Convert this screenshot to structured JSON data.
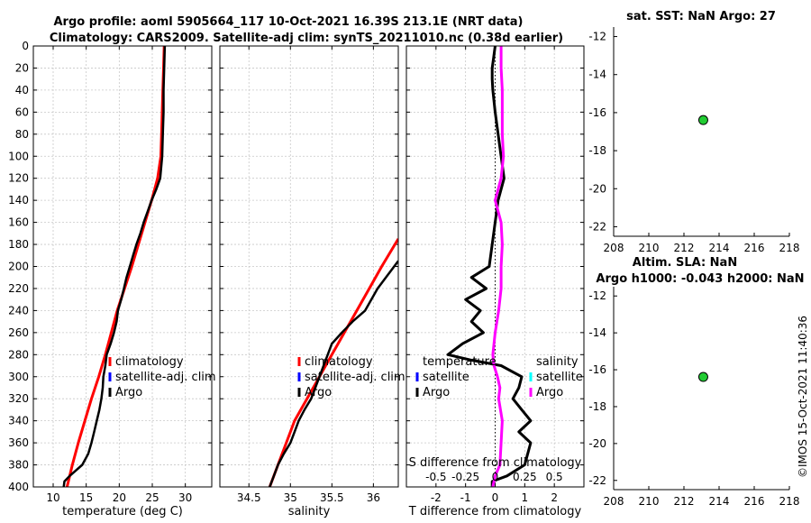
{
  "title": {
    "line1": "Argo profile: aoml 5905664_117 10-Oct-2021 16.39S 213.1E (NRT data)",
    "line2": "Climatology: CARS2009. Satellite-adj clim: synTS_20211010.nc (0.38d earlier)"
  },
  "stamp": "©IMOS 15-Oct-2021 11:40:36",
  "colors": {
    "red": "#ff0000",
    "blue": "#0000ff",
    "black": "#000000",
    "magenta": "#ff00ff",
    "cyan": "#00ffff",
    "green": "#22cc33",
    "grid": "#c8c8c8"
  },
  "chart_data": [
    {
      "id": "temperature",
      "type": "line",
      "xlabel": "temperature (deg C)",
      "ylabel": "",
      "xlim": [
        7,
        34
      ],
      "ylim": [
        400,
        0
      ],
      "xticks": [
        10,
        15,
        20,
        25,
        30
      ],
      "yticks": [
        0,
        20,
        40,
        60,
        80,
        100,
        120,
        140,
        160,
        180,
        200,
        220,
        240,
        260,
        280,
        300,
        320,
        340,
        360,
        380,
        400
      ],
      "legend": [
        "climatology",
        "satellite-adj. clim",
        "Argo"
      ],
      "series": [
        {
          "name": "climatology",
          "color": "red",
          "depth": [
            0,
            20,
            40,
            60,
            80,
            100,
            120,
            140,
            160,
            180,
            200,
            220,
            240,
            260,
            280,
            300,
            320,
            340,
            360,
            380,
            400
          ],
          "values": [
            26.8,
            26.7,
            26.6,
            26.5,
            26.4,
            26.3,
            25.8,
            24.9,
            23.9,
            22.9,
            21.9,
            20.8,
            19.7,
            18.8,
            17.9,
            16.9,
            15.8,
            14.8,
            13.8,
            12.9,
            12.1
          ]
        },
        {
          "name": "Argo",
          "color": "black",
          "depth": [
            0,
            20,
            40,
            60,
            80,
            100,
            120,
            130,
            140,
            150,
            160,
            170,
            180,
            190,
            200,
            210,
            220,
            230,
            240,
            250,
            260,
            270,
            280,
            290,
            300,
            310,
            320,
            330,
            340,
            350,
            360,
            370,
            380,
            390,
            395,
            400
          ],
          "values": [
            26.9,
            26.8,
            26.7,
            26.7,
            26.6,
            26.5,
            26.2,
            25.6,
            24.9,
            24.3,
            23.7,
            23.2,
            22.6,
            22.1,
            21.6,
            21.1,
            20.7,
            20.3,
            19.8,
            19.6,
            19.2,
            18.7,
            18.1,
            17.9,
            17.6,
            17.5,
            17.3,
            17.0,
            16.6,
            16.2,
            15.8,
            15.3,
            14.4,
            12.5,
            11.7,
            11.6
          ]
        }
      ]
    },
    {
      "id": "salinity",
      "type": "line",
      "xlabel": "salinity",
      "xlim": [
        34.15,
        36.3
      ],
      "ylim": [
        400,
        0
      ],
      "xticks": [
        34.5,
        35,
        35.5,
        36
      ],
      "legend": [
        "climatology",
        "satellite-adj. clim",
        "Argo"
      ],
      "series": [
        {
          "name": "climatology",
          "color": "red",
          "depth": [
            175,
            200,
            220,
            240,
            260,
            280,
            300,
            320,
            340,
            360,
            380,
            400
          ],
          "values": [
            36.3,
            36.1,
            35.95,
            35.8,
            35.65,
            35.5,
            35.35,
            35.2,
            35.05,
            34.95,
            34.85,
            34.75
          ]
        },
        {
          "name": "Argo",
          "color": "black",
          "depth": [
            195,
            210,
            220,
            240,
            250,
            260,
            270,
            280,
            290,
            300,
            310,
            320,
            330,
            340,
            350,
            360,
            370,
            380,
            390,
            400
          ],
          "values": [
            36.3,
            36.15,
            36.05,
            35.9,
            35.75,
            35.62,
            35.5,
            35.45,
            35.4,
            35.35,
            35.3,
            35.25,
            35.17,
            35.1,
            35.05,
            35.0,
            34.92,
            34.85,
            34.8,
            34.75
          ]
        }
      ]
    },
    {
      "id": "differences",
      "type": "line",
      "xlabel": "T difference from climatology",
      "xlabel_top": "S difference from climatology",
      "xlim": [
        -3,
        3
      ],
      "ylim": [
        400,
        0
      ],
      "xticks": [
        -2,
        -1,
        0,
        1,
        2
      ],
      "xticks_top": [
        "-0.5",
        "-0.25",
        "0",
        "0.25",
        "0.5"
      ],
      "legend_t": [
        "temperature",
        "satellite",
        "Argo"
      ],
      "legend_s": [
        "salinity",
        "satellite",
        "Argo"
      ],
      "series": [
        {
          "name": "T difference (Argo)",
          "color": "black",
          "depth": [
            0,
            10,
            20,
            30,
            40,
            60,
            80,
            100,
            120,
            140,
            160,
            180,
            200,
            210,
            220,
            230,
            240,
            250,
            260,
            270,
            280,
            285,
            290,
            300,
            310,
            320,
            330,
            340,
            350,
            360,
            370,
            380,
            390,
            395,
            400
          ],
          "values": [
            0.0,
            -0.05,
            -0.1,
            -0.1,
            -0.08,
            0.0,
            0.1,
            0.2,
            0.3,
            0.1,
            0.0,
            -0.1,
            -0.2,
            -0.8,
            -0.3,
            -1.0,
            -0.5,
            -0.8,
            -0.4,
            -1.1,
            -1.6,
            -0.8,
            0.2,
            0.9,
            0.8,
            0.6,
            0.9,
            1.2,
            0.8,
            1.2,
            1.1,
            1.0,
            0.4,
            -0.1,
            -0.1
          ]
        },
        {
          "name": "S difference (Argo)",
          "color": "magenta",
          "depth": [
            0,
            20,
            40,
            60,
            80,
            100,
            120,
            140,
            160,
            180,
            200,
            220,
            240,
            260,
            270,
            280,
            290,
            300,
            310,
            320,
            340,
            360,
            380,
            390,
            400
          ],
          "values": [
            0.05,
            0.05,
            0.06,
            0.06,
            0.06,
            0.07,
            0.05,
            0.0,
            0.05,
            0.06,
            0.05,
            0.05,
            0.03,
            0.0,
            -0.01,
            -0.02,
            -0.01,
            0.02,
            0.04,
            0.03,
            0.06,
            0.05,
            0.04,
            0.0,
            -0.02
          ]
        }
      ]
    },
    {
      "id": "sst_map",
      "type": "scatter",
      "title": "sat. SST: NaN Argo: 27",
      "xlim": [
        208,
        218
      ],
      "ylim": [
        -22.5,
        -11.5
      ],
      "xticks": [
        208,
        210,
        212,
        214,
        216,
        218
      ],
      "yticks": [
        -12,
        -14,
        -16,
        -18,
        -20,
        -22
      ],
      "x": [
        213.1
      ],
      "y": [
        -16.39
      ]
    },
    {
      "id": "sla_map",
      "type": "scatter",
      "title": "Altim. SLA: NaN",
      "subtitle": "Argo h1000: -0.043 h2000: NaN",
      "xlim": [
        208,
        218
      ],
      "ylim": [
        -22.5,
        -11.5
      ],
      "xticks": [
        208,
        210,
        212,
        214,
        216,
        218
      ],
      "yticks": [
        -12,
        -14,
        -16,
        -18,
        -20,
        -22
      ],
      "x": [
        213.1
      ],
      "y": [
        -16.39
      ]
    }
  ]
}
